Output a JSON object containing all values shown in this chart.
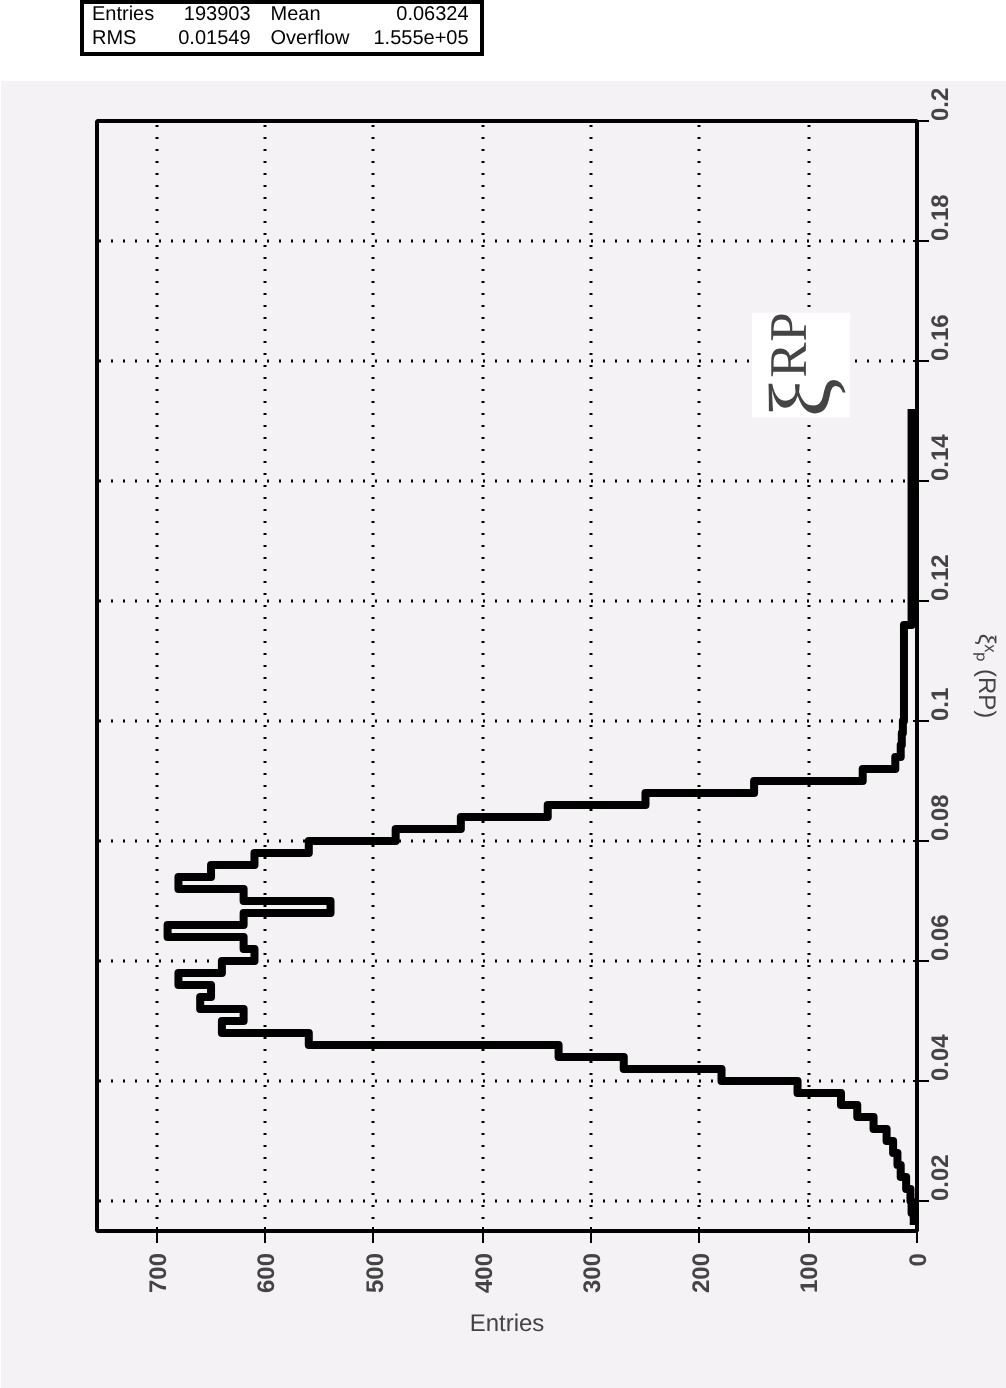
{
  "chart_data": {
    "type": "histogram",
    "orientation": "horizontal",
    "xlabel": "Entries",
    "ylabel": "ξˣₚ (RP)",
    "bins": [
      0.016,
      0.018,
      0.02,
      0.022,
      0.024,
      0.026,
      0.028,
      0.03,
      0.032,
      0.034,
      0.036,
      0.038,
      0.04,
      0.042,
      0.044,
      0.046,
      0.048,
      0.05,
      0.052,
      0.054,
      0.056,
      0.058,
      0.06,
      0.062,
      0.064,
      0.066,
      0.068,
      0.07,
      0.072,
      0.074,
      0.076,
      0.078,
      0.08,
      0.082,
      0.084,
      0.086,
      0.088,
      0.09,
      0.092,
      0.094,
      0.096,
      0.098,
      0.1,
      0.102,
      0.104,
      0.106,
      0.108,
      0.11,
      0.112,
      0.114,
      0.116,
      0.118,
      0.12,
      0.122,
      0.124,
      0.126,
      0.128,
      0.13,
      0.132,
      0.134,
      0.136,
      0.138,
      0.14,
      0.142,
      0.144,
      0.146,
      0.148,
      0.15,
      0.152
    ],
    "values": [
      3,
      5,
      6,
      10,
      15,
      18,
      22,
      28,
      40,
      55,
      70,
      110,
      180,
      270,
      330,
      560,
      640,
      620,
      660,
      650,
      680,
      640,
      610,
      620,
      690,
      620,
      540,
      620,
      680,
      650,
      610,
      560,
      480,
      420,
      340,
      250,
      150,
      50,
      20,
      15,
      14,
      13,
      12,
      12,
      12,
      12,
      12,
      12,
      12,
      12,
      5,
      5,
      5,
      5,
      5,
      5,
      5,
      5,
      5,
      5,
      5,
      5,
      5,
      5,
      5,
      5,
      5,
      5
    ],
    "color": "#000000",
    "xlim": [
      755,
      0
    ],
    "xticks": [
      0,
      100,
      200,
      300,
      400,
      500,
      600,
      700
    ],
    "ylim": [
      0.015,
      0.2
    ],
    "yticks": [
      0.02,
      0.04,
      0.06,
      0.08,
      0.1,
      0.12,
      0.14,
      0.16,
      0.18,
      0.2
    ],
    "grid": true,
    "annotations": [
      "Entries 193903",
      "Mean 0.06324",
      "RMS 0.01549",
      "Overflow 1.555e+05",
      "ξᴿᴾ"
    ]
  }
}
